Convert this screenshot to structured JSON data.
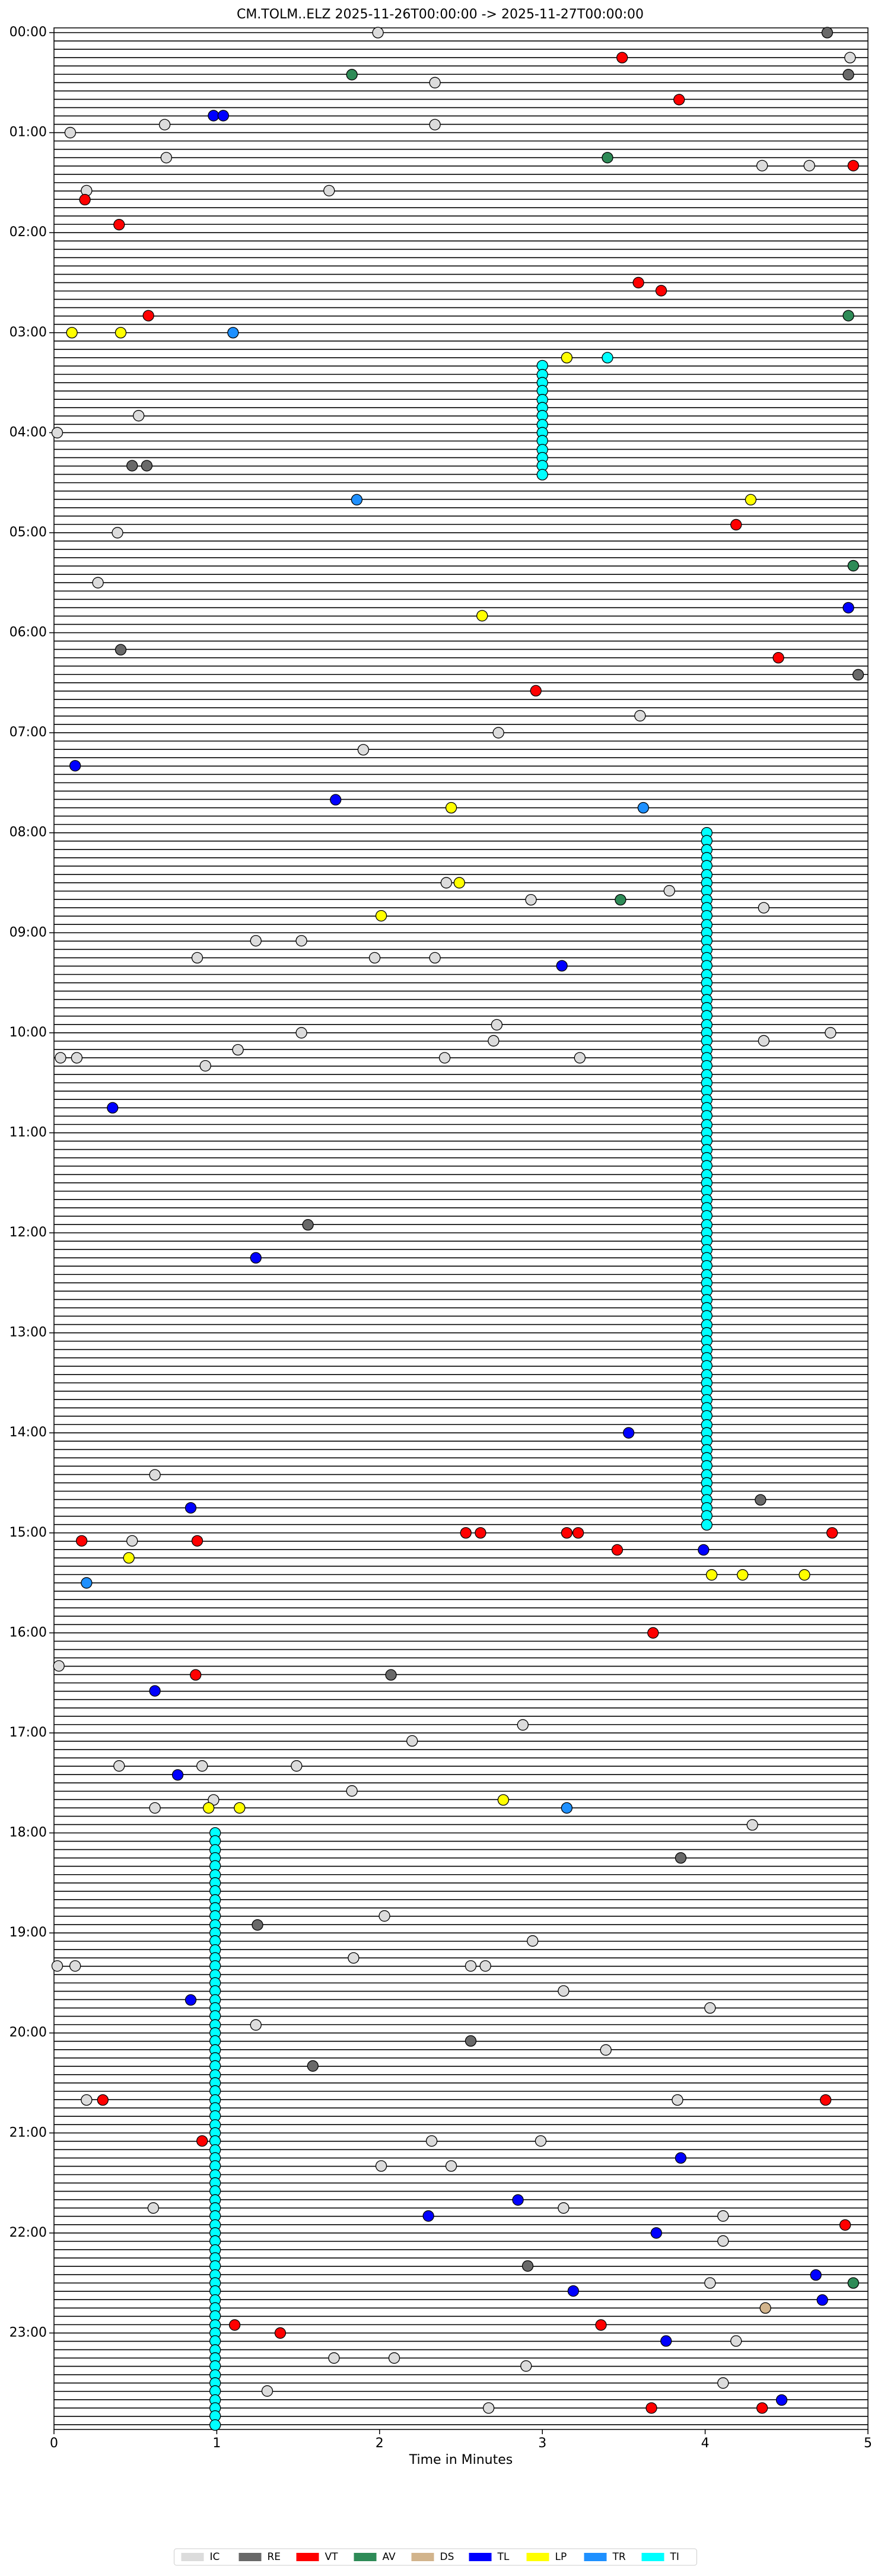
{
  "chart_data": {
    "type": "scatter",
    "title": "CM.TOLM..ELZ  2025-11-26T00:00:00 -> 2025-11-27T00:00:00",
    "xlabel": "Time in Minutes",
    "xlim": [
      0,
      5
    ],
    "xticks": [
      0,
      1,
      2,
      3,
      4,
      5
    ],
    "ylim": [
      0,
      24
    ],
    "invert_y": true,
    "yticks": [
      {
        "value": 0,
        "label": "00:00"
      },
      {
        "value": 1,
        "label": "01:00"
      },
      {
        "value": 2,
        "label": "02:00"
      },
      {
        "value": 3,
        "label": "03:00"
      },
      {
        "value": 4,
        "label": "04:00"
      },
      {
        "value": 5,
        "label": "05:00"
      },
      {
        "value": 6,
        "label": "06:00"
      },
      {
        "value": 7,
        "label": "07:00"
      },
      {
        "value": 8,
        "label": "08:00"
      },
      {
        "value": 9,
        "label": "09:00"
      },
      {
        "value": 10,
        "label": "10:00"
      },
      {
        "value": 11,
        "label": "11:00"
      },
      {
        "value": 12,
        "label": "12:00"
      },
      {
        "value": 13,
        "label": "13:00"
      },
      {
        "value": 14,
        "label": "14:00"
      },
      {
        "value": 15,
        "label": "15:00"
      },
      {
        "value": 16,
        "label": "16:00"
      },
      {
        "value": 17,
        "label": "17:00"
      },
      {
        "value": 18,
        "label": "18:00"
      },
      {
        "value": 19,
        "label": "19:00"
      },
      {
        "value": 20,
        "label": "20:00"
      },
      {
        "value": 21,
        "label": "21:00"
      },
      {
        "value": 22,
        "label": "22:00"
      },
      {
        "value": 23,
        "label": "23:00"
      }
    ],
    "legend": "bottom",
    "series": [
      {
        "name": "IC",
        "color": "#dcdcdc",
        "x": [
          1.99,
          2.34,
          0.68,
          0.1,
          2.34,
          0.69,
          0.2,
          1.69,
          4.35,
          4.64,
          0.27,
          0.39,
          0.52,
          0.02,
          3.6,
          1.9,
          2.73,
          2.41,
          3.78,
          4.36,
          2.93,
          0.88,
          1.52,
          1.97,
          2.34,
          1.24,
          1.52,
          2.72,
          2.7,
          1.13,
          0.93,
          0.04,
          0.14,
          2.4,
          3.23,
          4.36,
          4.77,
          0.48,
          0.62,
          0.03,
          2.2,
          2.88,
          0.4,
          0.91,
          1.49,
          1.83,
          0.62,
          4.29,
          0.98,
          2.03,
          1.84,
          2.94,
          0.02,
          0.13,
          2.56,
          2.65,
          3.13,
          4.03,
          1.24,
          3.39,
          3.83,
          0.2,
          2.32,
          2.99,
          2.01,
          2.44,
          0.61,
          3.13,
          4.11,
          4.11,
          4.03,
          1.72,
          2.09,
          2.9,
          4.11,
          2.67,
          1.31,
          4.19,
          4.89
        ],
        "y": [
          0,
          0.5,
          0.92,
          1,
          0.92,
          1.25,
          1.58,
          1.58,
          1.33,
          1.33,
          5.5,
          5,
          3.83,
          4,
          6.83,
          7.17,
          7,
          8.5,
          8.58,
          8.75,
          8.67,
          9.25,
          9.08,
          9.25,
          9.25,
          9.08,
          10,
          9.92,
          10.08,
          10.17,
          10.33,
          10.25,
          10.25,
          10.25,
          10.25,
          10.08,
          10,
          15.08,
          14.42,
          16.33,
          17.08,
          16.92,
          17.33,
          17.33,
          17.33,
          17.58,
          17.75,
          17.92,
          17.67,
          18.83,
          19.25,
          19.08,
          19.33,
          19.33,
          19.33,
          19.33,
          19.58,
          19.75,
          19.92,
          20.17,
          20.67,
          20.67,
          21.08,
          21.08,
          21.33,
          21.33,
          21.75,
          21.75,
          21.83,
          22.08,
          22.5,
          23.25,
          23.25,
          23.33,
          23.5,
          23.75,
          23.58,
          23.08,
          0.25
        ]
      },
      {
        "name": "RE",
        "color": "#696969",
        "x": [
          4.75,
          4.88,
          0.48,
          0.57,
          0.41,
          4.94,
          1.56,
          4.34,
          2.07,
          3.85,
          1.25,
          2.56,
          1.59,
          2.91
        ],
        "y": [
          0,
          0.42,
          4.33,
          4.33,
          6.17,
          6.42,
          11.92,
          14.67,
          16.42,
          18.25,
          18.92,
          20.08,
          20.33,
          22.33
        ]
      },
      {
        "name": "VT",
        "color": "#ff0000",
        "x": [
          3.49,
          3.84,
          0.4,
          0.19,
          4.91,
          3.59,
          3.73,
          0.58,
          4.19,
          4.45,
          2.96,
          0.17,
          0.88,
          2.53,
          2.62,
          3.15,
          3.22,
          3.46,
          4.78,
          3.68,
          0.87,
          4.74,
          0.3,
          0.91,
          4.86,
          1.11,
          1.39,
          3.36,
          3.67,
          4.35
        ],
        "y": [
          0.25,
          0.67,
          1.92,
          1.67,
          1.33,
          2.5,
          2.58,
          2.83,
          4.92,
          6.25,
          6.58,
          15.08,
          15.08,
          15,
          15,
          15,
          15,
          15.17,
          15,
          16,
          16.42,
          20.67,
          20.67,
          21.08,
          21.92,
          22.92,
          23,
          22.92,
          23.75,
          23.75
        ]
      },
      {
        "name": "AV",
        "color": "#2e8b57",
        "x": [
          1.83,
          3.4,
          4.88,
          4.91,
          3.48,
          4.91
        ],
        "y": [
          0.42,
          1.25,
          2.83,
          5.33,
          8.67,
          22.5
        ]
      },
      {
        "name": "DS",
        "color": "#d2b48c",
        "x": [
          4.37
        ],
        "y": [
          22.75
        ]
      },
      {
        "name": "TL",
        "color": "#0000ff",
        "x": [
          0.98,
          1.04,
          0.13,
          1.73,
          0.84,
          3.53,
          3.12,
          1.24,
          3.99,
          0.62,
          0.76,
          0.84,
          2.85,
          2.3,
          3.19,
          3.76,
          3.85,
          4.47,
          3.7,
          4.68,
          4.72,
          0.36,
          4.88
        ],
        "y": [
          0.83,
          0.83,
          7.33,
          7.67,
          14.75,
          14,
          9.33,
          12.25,
          15.17,
          16.58,
          17.42,
          19.67,
          21.67,
          21.83,
          22.58,
          23.08,
          21.25,
          23.67,
          22,
          22.42,
          22.67,
          10.75,
          5.75
        ]
      },
      {
        "name": "LP",
        "color": "#ffff00",
        "x": [
          0.11,
          0.41,
          3.15,
          4.28,
          2.63,
          2.44,
          2.49,
          2.01,
          0.46,
          4.04,
          4.23,
          4.61,
          2.76,
          0.95,
          1.14
        ],
        "y": [
          3,
          3,
          3.25,
          4.67,
          5.83,
          7.75,
          8.5,
          8.83,
          15.25,
          15.42,
          15.42,
          15.42,
          17.67,
          17.75,
          17.75
        ]
      },
      {
        "name": "TR",
        "color": "#1e90ff",
        "x": [
          1.1,
          1.86,
          3.62,
          0.2,
          3.15
        ],
        "y": [
          3,
          4.67,
          7.75,
          15.5,
          17.75
        ]
      },
      {
        "name": "TI",
        "color": "#00ffff",
        "x": [
          3.4,
          3,
          3,
          3,
          3,
          3,
          3,
          3,
          3,
          3,
          3,
          3,
          3,
          3,
          3,
          4.01,
          4.01,
          4.01,
          4.01,
          4.01,
          4.01,
          4.01,
          4.01,
          4.01,
          4.01,
          4.01,
          4.01,
          4.01,
          4.01,
          4.01,
          4.01,
          4.01,
          4.01,
          4.01,
          4.01,
          4.01,
          4.01,
          4.01,
          4.01,
          4.01,
          4.01,
          4.01,
          4.01,
          4.01,
          4.01,
          4.01,
          4.01,
          4.01,
          4.01,
          4.01,
          4.01,
          4.01,
          4.01,
          4.01,
          4.01,
          4.01,
          4.01,
          4.01,
          4.01,
          4.01,
          4.01,
          4.01,
          4.01,
          4.01,
          4.01,
          4.01,
          4.01,
          4.01,
          4.01,
          4.01,
          4.01,
          4.01,
          4.01,
          4.01,
          4.01,
          4.01,
          4.01,
          4.01,
          4.01,
          4.01,
          4.01,
          4.01,
          4.01,
          4.01,
          4.01,
          4.01,
          4.01,
          4.01,
          4.01,
          4.01,
          4.01,
          4.01,
          4.01,
          4.01,
          4.01,
          4.01,
          4.01,
          4.01,
          4.01,
          0.99,
          0.99,
          0.99,
          0.99,
          0.99,
          0.99,
          0.99,
          0.99,
          0.99,
          0.99,
          0.99,
          0.99,
          0.99,
          0.99,
          0.99,
          0.99,
          0.99,
          0.99,
          0.99,
          0.99,
          0.99,
          0.99,
          0.99,
          0.99,
          0.99,
          0.99,
          0.99,
          0.99,
          0.99,
          0.99,
          0.99,
          0.99,
          0.99,
          0.99,
          0.99,
          0.99,
          0.99,
          0.99,
          0.99,
          0.99,
          0.99,
          0.99,
          0.99,
          0.99,
          0.99,
          0.99,
          0.99,
          0.99,
          0.99,
          0.99,
          0.99,
          0.99,
          0.99,
          0.99,
          0.99,
          0.99,
          0.99,
          0.99,
          0.99,
          0.99,
          0.99,
          0.99,
          0.99,
          0.99,
          0.99,
          0.99,
          0.99,
          0.99,
          0.99,
          0.99,
          0.99,
          0.99
        ],
        "y": [
          3.25,
          3.33,
          3.42,
          3.5,
          3.58,
          3.67,
          3.75,
          3.83,
          3.92,
          4,
          4.08,
          4.17,
          4.25,
          4.33,
          4.42,
          8,
          8.08,
          8.17,
          8.25,
          8.33,
          8.42,
          8.5,
          8.58,
          8.67,
          8.75,
          8.83,
          8.92,
          9,
          9.08,
          9.17,
          9.25,
          9.33,
          9.42,
          9.5,
          9.58,
          9.67,
          9.75,
          9.83,
          9.92,
          10,
          10.08,
          10.17,
          10.25,
          10.33,
          10.42,
          10.5,
          10.58,
          10.67,
          10.75,
          10.83,
          10.92,
          11,
          11.08,
          11.17,
          11.25,
          11.33,
          11.42,
          11.5,
          11.58,
          11.67,
          11.75,
          11.83,
          11.92,
          12,
          12.08,
          12.17,
          12.25,
          12.33,
          12.42,
          12.5,
          12.58,
          12.67,
          12.75,
          12.83,
          12.92,
          13,
          13.08,
          13.17,
          13.25,
          13.33,
          13.42,
          13.5,
          13.58,
          13.67,
          13.75,
          13.83,
          13.92,
          14,
          14.08,
          14.17,
          14.25,
          14.33,
          14.42,
          14.5,
          14.58,
          14.67,
          14.75,
          14.83,
          14.92,
          18,
          18.08,
          18.17,
          18.25,
          18.33,
          18.42,
          18.5,
          18.58,
          18.67,
          18.75,
          18.83,
          18.92,
          19,
          19.08,
          19.17,
          19.25,
          19.33,
          19.42,
          19.5,
          19.58,
          19.67,
          19.75,
          19.83,
          19.92,
          20,
          20.08,
          20.17,
          20.25,
          20.33,
          20.42,
          20.5,
          20.58,
          20.67,
          20.75,
          20.83,
          20.92,
          21,
          21.08,
          21.17,
          21.25,
          21.33,
          21.42,
          21.5,
          21.58,
          21.67,
          21.75,
          21.83,
          21.92,
          22,
          22.08,
          22.17,
          22.25,
          22.33,
          22.42,
          22.5,
          22.58,
          22.67,
          22.75,
          22.83,
          22.92,
          23,
          23.08,
          23.17,
          23.25,
          23.33,
          23.42,
          23.5,
          23.58,
          23.67,
          23.75,
          23.83,
          23.92
        ]
      }
    ]
  }
}
